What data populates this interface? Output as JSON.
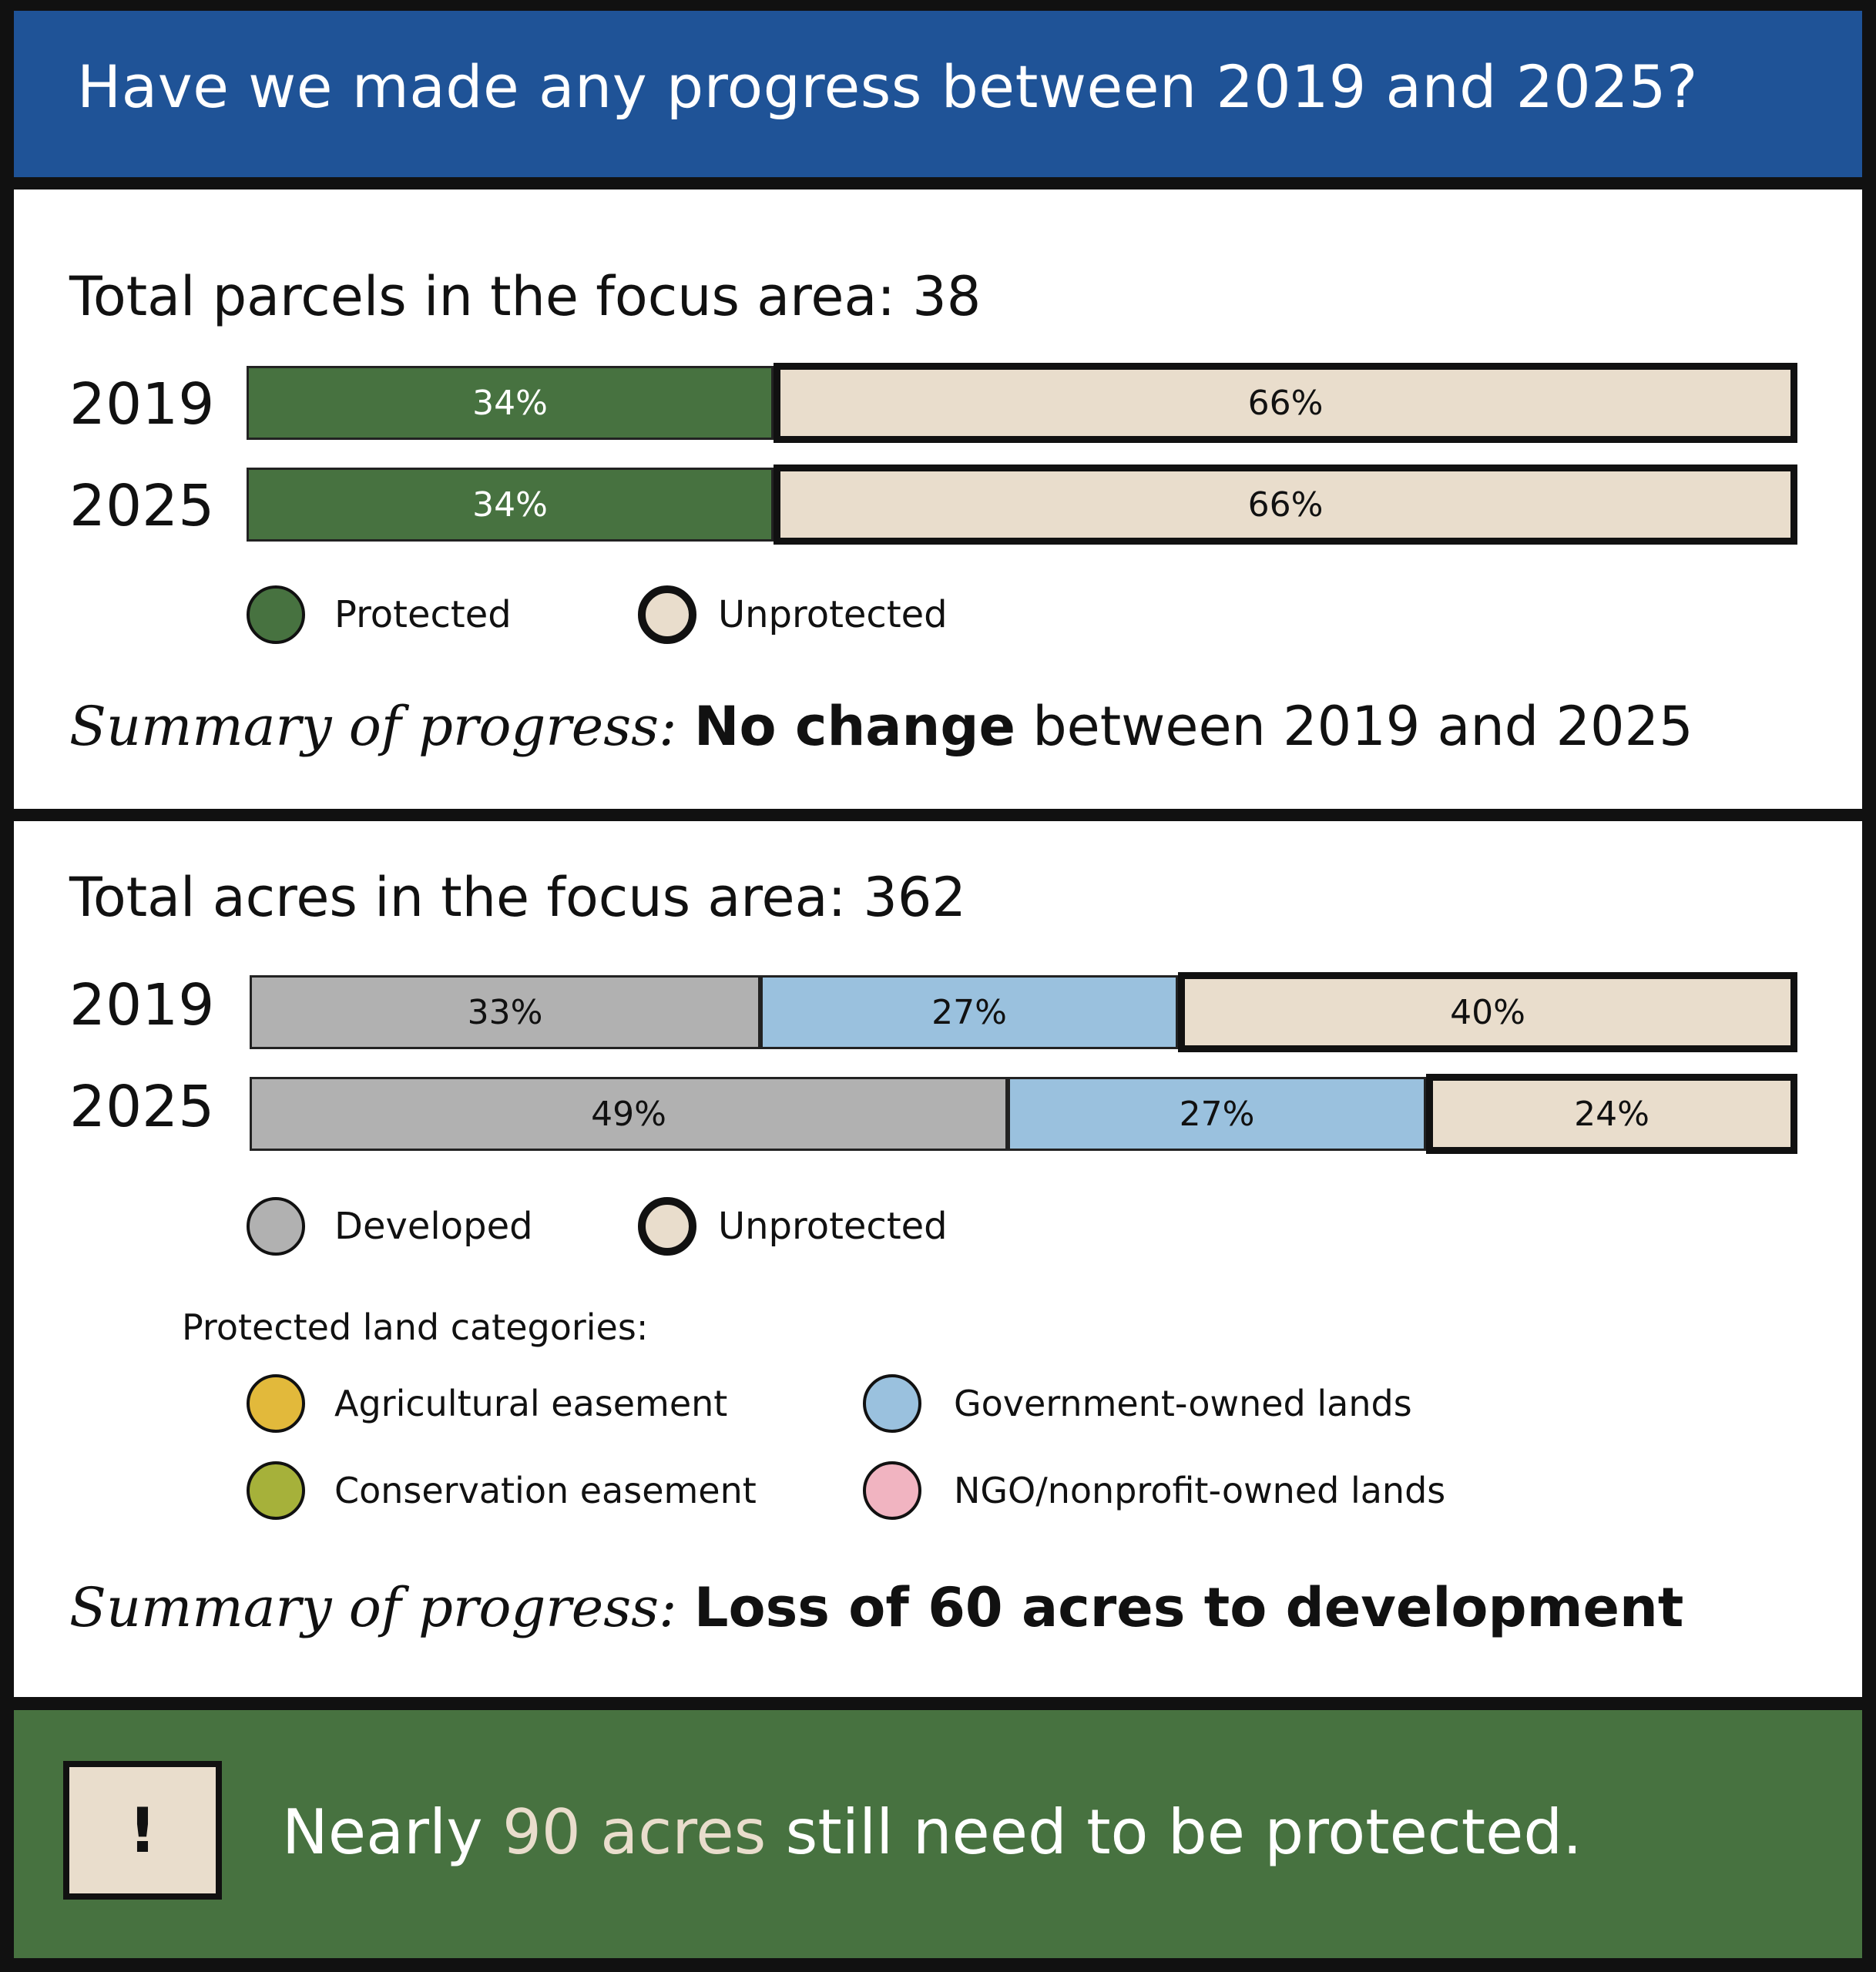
{
  "header": {
    "title": "Have we made any progress between 2019 and 2025?"
  },
  "parcels": {
    "title": "Total parcels in the focus area: 38",
    "legend": {
      "protected": "Protected",
      "unprotected": "Unprotected"
    },
    "summary": {
      "lead": "Summary of progress:",
      "strong": "No change",
      "rest": " between 2019 and 2025"
    }
  },
  "acres": {
    "title": "Total acres in the focus area: 362",
    "legend": {
      "developed": "Developed",
      "unprotected": "Unprotected"
    },
    "categories_heading": "Protected land categories:",
    "categories": {
      "agricultural": "Agricultural easement",
      "government": "Government-owned lands",
      "conservation": "Conservation easement",
      "ngo": "NGO/nonprofit-owned lands"
    },
    "summary": {
      "lead": "Summary of progress:",
      "strong": "Loss of 60 acres to development",
      "rest": ""
    }
  },
  "callout": {
    "icon": "!",
    "pre": "Nearly ",
    "highlight": "90 acres",
    "post": " still need to be protected."
  },
  "colors": {
    "header_blue": "#1f5397",
    "protected_green": "#477240",
    "unprotected_beige": "#e9ddcc",
    "developed_gray": "#b1b1b1",
    "government_blue": "#9ac1de",
    "agricultural_yellow": "#e2b93b",
    "conservation_olive": "#a6b13a",
    "ngo_pink": "#f1b4c1"
  },
  "chart_data": [
    {
      "type": "bar",
      "stacked": true,
      "orientation": "horizontal",
      "title": "Total parcels in the focus area: 38",
      "categories": [
        "2019",
        "2025"
      ],
      "series": [
        {
          "name": "Protected",
          "values": [
            34,
            34
          ],
          "labels": [
            "34%",
            "34%"
          ]
        },
        {
          "name": "Unprotected",
          "values": [
            66,
            66
          ],
          "labels": [
            "66%",
            "66%"
          ]
        }
      ],
      "xlim": [
        0,
        100
      ]
    },
    {
      "type": "bar",
      "stacked": true,
      "orientation": "horizontal",
      "title": "Total acres in the focus area: 362",
      "categories": [
        "2019",
        "2025"
      ],
      "series": [
        {
          "name": "Developed",
          "values": [
            33,
            49
          ],
          "labels": [
            "33%",
            "49%"
          ]
        },
        {
          "name": "Government-owned lands",
          "values": [
            27,
            27
          ],
          "labels": [
            "27%",
            "27%"
          ]
        },
        {
          "name": "Unprotected",
          "values": [
            40,
            24
          ],
          "labels": [
            "40%",
            "24%"
          ]
        }
      ],
      "xlim": [
        0,
        100
      ]
    }
  ]
}
